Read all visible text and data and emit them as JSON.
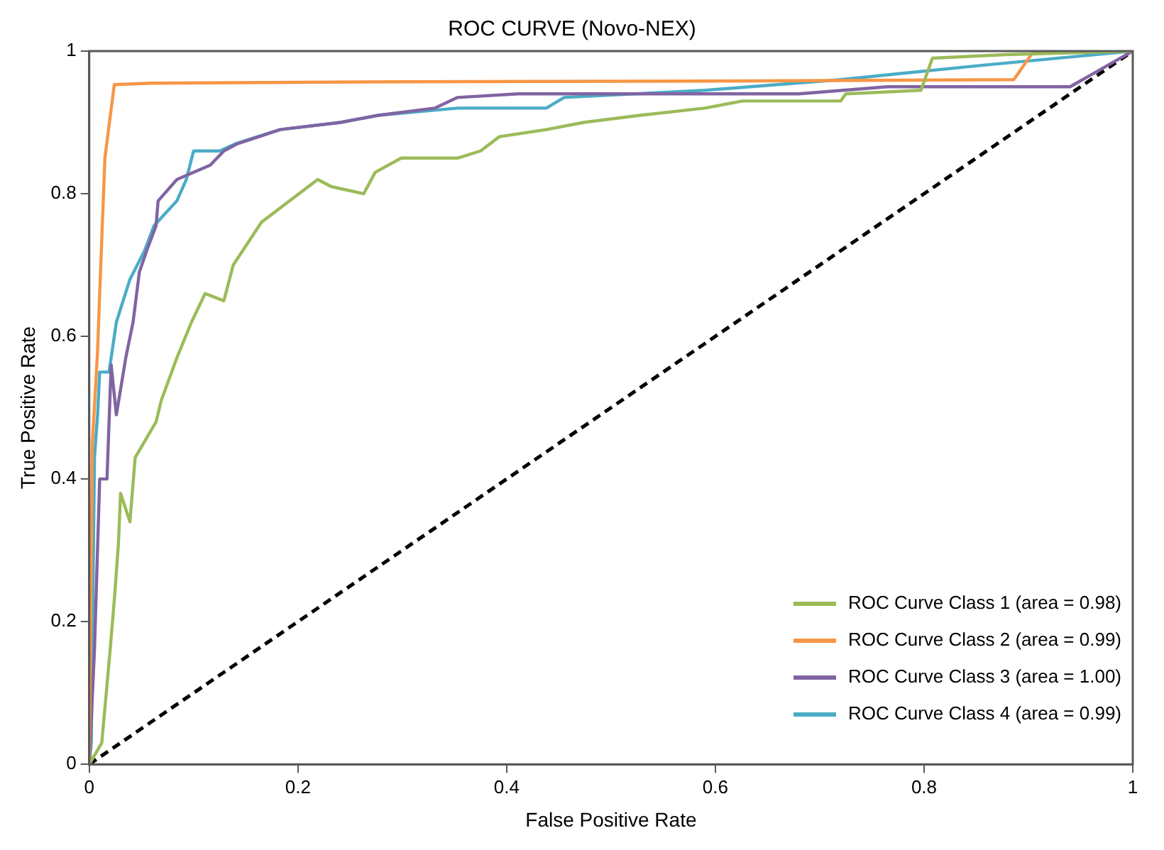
{
  "chart_data": {
    "type": "line",
    "title": "ROC CURVE (Novo-NEX)",
    "xlabel": "False Positive Rate",
    "ylabel": "True Positive Rate",
    "xlim": [
      0,
      1
    ],
    "ylim": [
      0,
      1
    ],
    "xticks": [
      0,
      0.2,
      0.4,
      0.6,
      0.8,
      1
    ],
    "yticks": [
      0,
      0.2,
      0.4,
      0.6,
      0.8,
      1
    ],
    "grid": false,
    "legend": "bottom right",
    "marker": "none",
    "series": [
      {
        "name": "ROC Curve Class 1 (area = 0.98)",
        "color": "#9bbb59",
        "x": [
          0,
          0.012,
          0.02,
          0.024,
          0.028,
          0.03,
          0.039,
          0.044,
          0.064,
          0.069,
          0.084,
          0.098,
          0.111,
          0.129,
          0.138,
          0.165,
          0.192,
          0.219,
          0.232,
          0.263,
          0.274,
          0.299,
          0.353,
          0.375,
          0.393,
          0.438,
          0.474,
          0.528,
          0.59,
          0.626,
          0.68,
          0.72,
          0.725,
          0.797,
          0.808,
          0.878,
          1
        ],
        "values": [
          0,
          0.03,
          0.16,
          0.23,
          0.31,
          0.38,
          0.34,
          0.43,
          0.48,
          0.51,
          0.57,
          0.62,
          0.66,
          0.65,
          0.7,
          0.76,
          0.79,
          0.82,
          0.81,
          0.8,
          0.83,
          0.85,
          0.85,
          0.86,
          0.88,
          0.89,
          0.9,
          0.91,
          0.92,
          0.93,
          0.93,
          0.93,
          0.94,
          0.945,
          0.99,
          0.995,
          1
        ]
      },
      {
        "name": "ROC Curve Class 2 (area = 0.99)",
        "color": "#f79646",
        "x": [
          0,
          0.003,
          0.008,
          0.01,
          0.015,
          0.024,
          0.06,
          0.3,
          0.6,
          0.886,
          0.905,
          1
        ],
        "values": [
          0,
          0.45,
          0.58,
          0.66,
          0.85,
          0.953,
          0.955,
          0.957,
          0.958,
          0.96,
          1,
          1
        ]
      },
      {
        "name": "ROC Curve Class 3 (area = 1.00)",
        "color": "#8064a2",
        "x": [
          0,
          0.005,
          0.01,
          0.017,
          0.019,
          0.021,
          0.026,
          0.035,
          0.042,
          0.048,
          0.055,
          0.064,
          0.066,
          0.084,
          0.116,
          0.129,
          0.142,
          0.183,
          0.241,
          0.277,
          0.331,
          0.353,
          0.411,
          0.68,
          0.765,
          0.94,
          1
        ],
        "values": [
          0,
          0.16,
          0.4,
          0.4,
          0.48,
          0.56,
          0.49,
          0.57,
          0.62,
          0.69,
          0.72,
          0.755,
          0.79,
          0.82,
          0.84,
          0.86,
          0.87,
          0.89,
          0.9,
          0.91,
          0.92,
          0.935,
          0.94,
          0.94,
          0.95,
          0.95,
          1
        ]
      },
      {
        "name": "ROC Curve Class 4 (area = 0.99)",
        "color": "#4bacc6",
        "x": [
          0,
          0.002,
          0.005,
          0.008,
          0.01,
          0.019,
          0.026,
          0.039,
          0.053,
          0.062,
          0.084,
          0.093,
          0.1,
          0.125,
          0.14,
          0.183,
          0.241,
          0.277,
          0.353,
          0.438,
          0.455,
          0.59,
          0.72,
          0.855,
          1
        ],
        "values": [
          0,
          0.03,
          0.43,
          0.49,
          0.55,
          0.55,
          0.62,
          0.68,
          0.72,
          0.755,
          0.79,
          0.82,
          0.86,
          0.86,
          0.87,
          0.89,
          0.9,
          0.91,
          0.92,
          0.92,
          0.935,
          0.945,
          0.96,
          0.98,
          1
        ]
      },
      {
        "color": "#000000",
        "line_style": "dashed",
        "x": [
          0,
          1
        ],
        "values": [
          0,
          1
        ]
      }
    ]
  }
}
